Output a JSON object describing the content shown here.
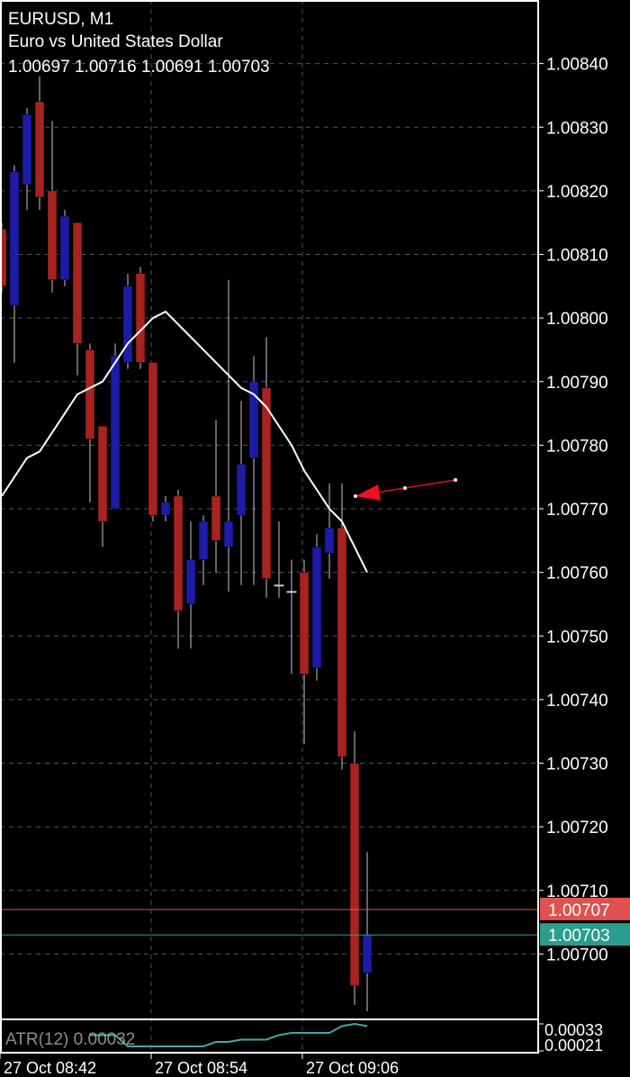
{
  "chart_data": [
    {
      "type": "candlestick",
      "title": "EURUSD, M1",
      "subtitle": "Euro vs United States Dollar",
      "categories": [
        "27 Oct 08:42",
        null,
        null,
        null,
        null,
        null,
        null,
        null,
        null,
        null,
        null,
        null,
        "27 Oct 08:54",
        null,
        null,
        null,
        null,
        null,
        null,
        null,
        null,
        null,
        null,
        null,
        "27 Oct 09:06",
        null,
        null,
        null,
        null,
        null
      ],
      "open": [
        1.00814,
        1.00802,
        1.00821,
        1.00834,
        1.0082,
        1.00806,
        1.00815,
        1.00795,
        1.00783,
        1.0077,
        1.00793,
        1.00807,
        1.00793,
        1.00769,
        1.00772,
        1.00755,
        1.00762,
        1.00772,
        1.00764,
        1.00769,
        1.00778,
        1.00789,
        1.00758,
        1.00757,
        1.0076,
        1.00745,
        1.00763,
        1.00767,
        1.0073,
        1.00697
      ],
      "high": [
        1.00815,
        1.00824,
        1.00833,
        1.00838,
        1.00831,
        1.00817,
        1.00815,
        1.00796,
        1.00783,
        1.00796,
        1.00807,
        1.00808,
        1.00793,
        1.00772,
        1.00773,
        1.00768,
        1.00769,
        1.00784,
        1.00806,
        1.00787,
        1.00794,
        1.00797,
        1.00768,
        1.00762,
        1.00762,
        1.00766,
        1.00774,
        1.00774,
        1.00735,
        1.00716
      ],
      "low": [
        1.00804,
        1.00793,
        1.00817,
        1.00817,
        1.00804,
        1.00805,
        1.00791,
        1.00771,
        1.00764,
        1.0077,
        1.00792,
        1.00792,
        1.00768,
        1.00768,
        1.00748,
        1.00748,
        1.00758,
        1.0076,
        1.00757,
        1.00758,
        1.00758,
        1.00756,
        1.00756,
        1.00744,
        1.00733,
        1.00743,
        1.00759,
        1.00729,
        1.00692,
        1.00691
      ],
      "close": [
        1.00805,
        1.00823,
        1.00832,
        1.00819,
        1.00806,
        1.00816,
        1.00796,
        1.00781,
        1.00768,
        1.00794,
        1.00805,
        1.00793,
        1.00769,
        1.00771,
        1.00754,
        1.00762,
        1.00768,
        1.00765,
        1.00768,
        1.00777,
        1.0079,
        1.00759,
        1.00758,
        1.00757,
        1.00744,
        1.00764,
        1.00767,
        1.00731,
        1.00695,
        1.00703
      ],
      "up_color": "#1c1ca8",
      "down_color": "#a8231f",
      "wick_color": "#c8c8c8",
      "ma": {
        "color": "#ffffff",
        "values": [
          1.00772,
          1.00775,
          1.00778,
          1.00779,
          1.00782,
          1.00785,
          1.00788,
          1.00789,
          1.0079,
          1.00793,
          1.00796,
          1.00798,
          1.008,
          1.00801,
          1.00799,
          1.00797,
          1.00795,
          1.00793,
          1.00791,
          1.00789,
          1.00788,
          1.00786,
          1.00783,
          1.0078,
          1.00776,
          1.00773,
          1.0077,
          1.00768,
          1.00764,
          1.0076
        ]
      },
      "ask": 1.00707,
      "ask_color": "#e0524f",
      "bid": 1.00703,
      "bid_color": "#2a9d8f",
      "ylim": [
        1.0069,
        1.0085
      ],
      "yticks": [
        {
          "value": 1.0084,
          "label": "1.00840"
        },
        {
          "value": 1.0083,
          "label": "1.00830"
        },
        {
          "value": 1.0082,
          "label": "1.00820"
        },
        {
          "value": 1.0081,
          "label": "1.00810"
        },
        {
          "value": 1.008,
          "label": "1.00800"
        },
        {
          "value": 1.0079,
          "label": "1.00790"
        },
        {
          "value": 1.0078,
          "label": "1.00780"
        },
        {
          "value": 1.0077,
          "label": "1.00770"
        },
        {
          "value": 1.0076,
          "label": "1.00760"
        },
        {
          "value": 1.0075,
          "label": "1.00750"
        },
        {
          "value": 1.0074,
          "label": "1.00740"
        },
        {
          "value": 1.0073,
          "label": "1.00730"
        },
        {
          "value": 1.0072,
          "label": "1.00720"
        },
        {
          "value": 1.0071,
          "label": "1.00710"
        },
        {
          "value": 1.007,
          "label": "1.00700"
        }
      ],
      "grid": true
    },
    {
      "type": "line",
      "name": "ATR(12)",
      "color": "#3fa9a0",
      "values": [
        null,
        null,
        null,
        null,
        null,
        null,
        null,
        0.00028,
        0.00028,
        0.00028,
        0.00023,
        0.00023,
        0.00023,
        0.00023,
        0.00023,
        0.00023,
        0.00023,
        0.00025,
        0.00025,
        0.00026,
        0.00026,
        0.00026,
        0.00028,
        0.00029,
        0.00029,
        0.00029,
        0.00029,
        0.00032,
        0.00033,
        0.00032
      ],
      "ylim": [
        0.00021,
        0.00033
      ],
      "yticks": [
        0.00033,
        0.00021
      ]
    }
  ]
}
